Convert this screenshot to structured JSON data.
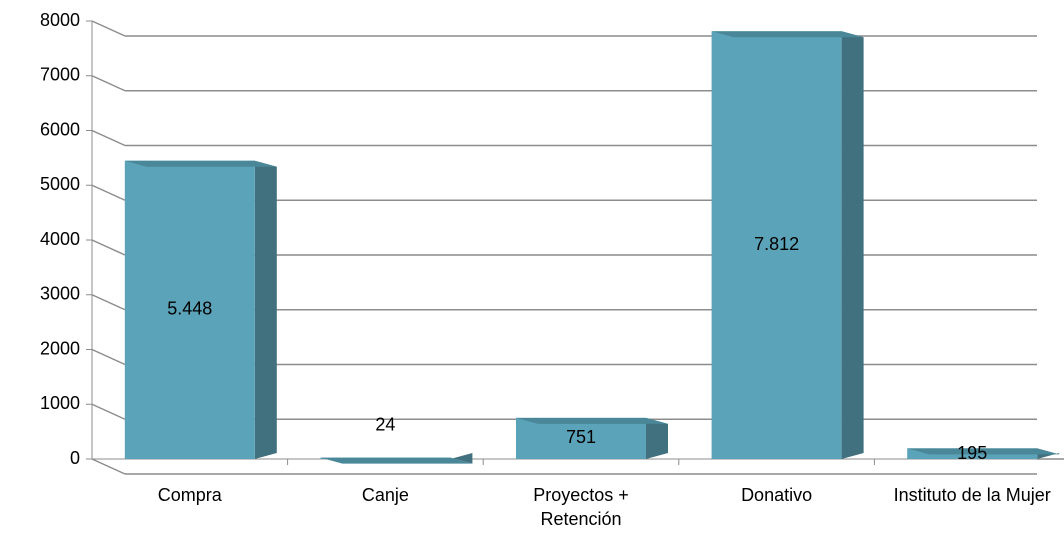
{
  "chart_data": {
    "type": "bar3d",
    "categories": [
      "Compra",
      "Canje",
      "Proyectos + Retención",
      "Donativo",
      "Instituto de la Mujer"
    ],
    "values": [
      5448,
      24,
      751,
      7812,
      195
    ],
    "value_labels": [
      "5.448",
      "24",
      "751",
      "7.812",
      "195"
    ],
    "color": "#5ba3b8",
    "ylim": [
      0,
      8000
    ],
    "yticks": [
      0,
      1000,
      2000,
      3000,
      4000,
      5000,
      6000,
      7000,
      8000
    ],
    "grid": true
  }
}
